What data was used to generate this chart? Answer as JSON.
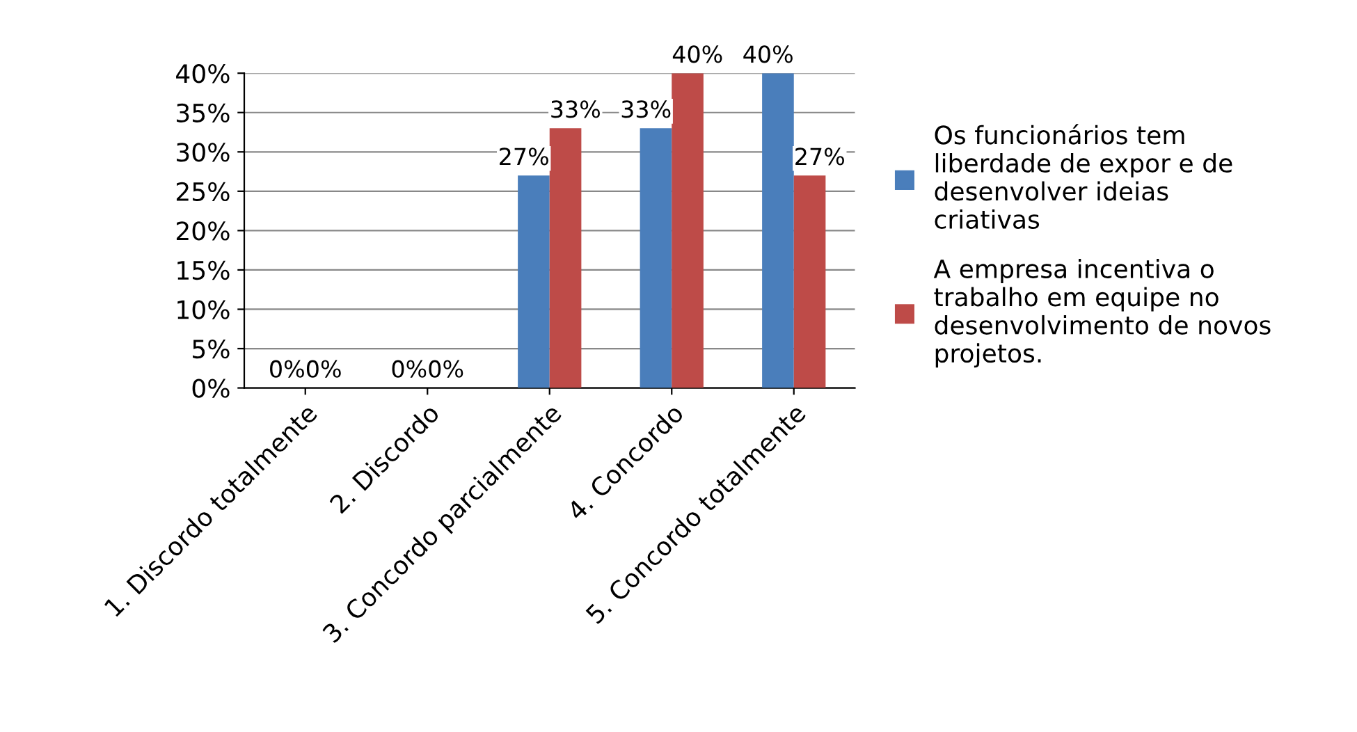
{
  "chart_data": {
    "type": "bar",
    "categories": [
      "1. Discordo totalmente",
      "2. Discordo",
      "3. Concordo parcialmente",
      "4. Concordo",
      "5. Concordo totalmente"
    ],
    "series": [
      {
        "name": "Os funcionários tem liberdade de expor e de desenvolver ideias criativas",
        "color": "#4a7ebb",
        "values": [
          0,
          0,
          27,
          33,
          40
        ],
        "value_labels": [
          "0%",
          "0%",
          "27%",
          "33%",
          "40%"
        ]
      },
      {
        "name": "A empresa incentiva o trabalho em equipe no desenvolvimento de novos projetos.",
        "color": "#be4b48",
        "values": [
          0,
          0,
          33,
          40,
          27
        ],
        "value_labels": [
          "0%",
          "0%",
          "33%",
          "40%",
          "27%"
        ]
      }
    ],
    "ylim": [
      0,
      40
    ],
    "yticks": [
      {
        "value": 0,
        "label": "0%"
      },
      {
        "value": 5,
        "label": "5%"
      },
      {
        "value": 10,
        "label": "10%"
      },
      {
        "value": 15,
        "label": "15%"
      },
      {
        "value": 20,
        "label": "20%"
      },
      {
        "value": 25,
        "label": "25%"
      },
      {
        "value": 30,
        "label": "30%"
      },
      {
        "value": 35,
        "label": "35%"
      },
      {
        "value": 40,
        "label": "40%"
      }
    ],
    "grid": "y",
    "legend": "right"
  }
}
